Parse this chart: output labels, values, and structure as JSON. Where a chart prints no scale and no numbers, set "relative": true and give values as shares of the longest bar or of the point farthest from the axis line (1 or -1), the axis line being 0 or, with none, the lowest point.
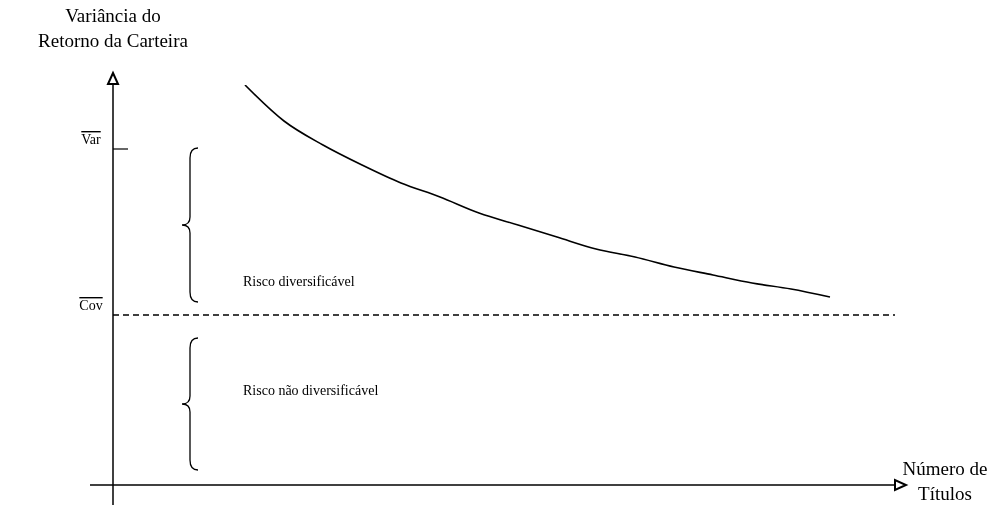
{
  "chart_data": {
    "type": "line",
    "relative": true,
    "ylabel": "Variância do\nRetorno da Carteira",
    "xlabel": "Número de\nTítulos",
    "categories": [
      null,
      null,
      null,
      null,
      null,
      null,
      null,
      null,
      null,
      null,
      null,
      null,
      null,
      null,
      null,
      null
    ],
    "series": [
      {
        "color": "#000000",
        "values": [
          1.0,
          0.91,
          0.85,
          0.8,
          0.755,
          0.72,
          0.68,
          0.65,
          0.62,
          0.59,
          0.57,
          0.545,
          0.525,
          0.505,
          0.49,
          0.47
        ]
      }
    ],
    "ref_lines": [
      {
        "axis": "y",
        "value": 0.425,
        "label": "Cov",
        "line_style": "dashed",
        "color": "#000000"
      }
    ],
    "annotations": [
      "Var",
      "Risco diversificável",
      "Risco não diversificável"
    ],
    "marker": "none",
    "line_style": "solid"
  }
}
